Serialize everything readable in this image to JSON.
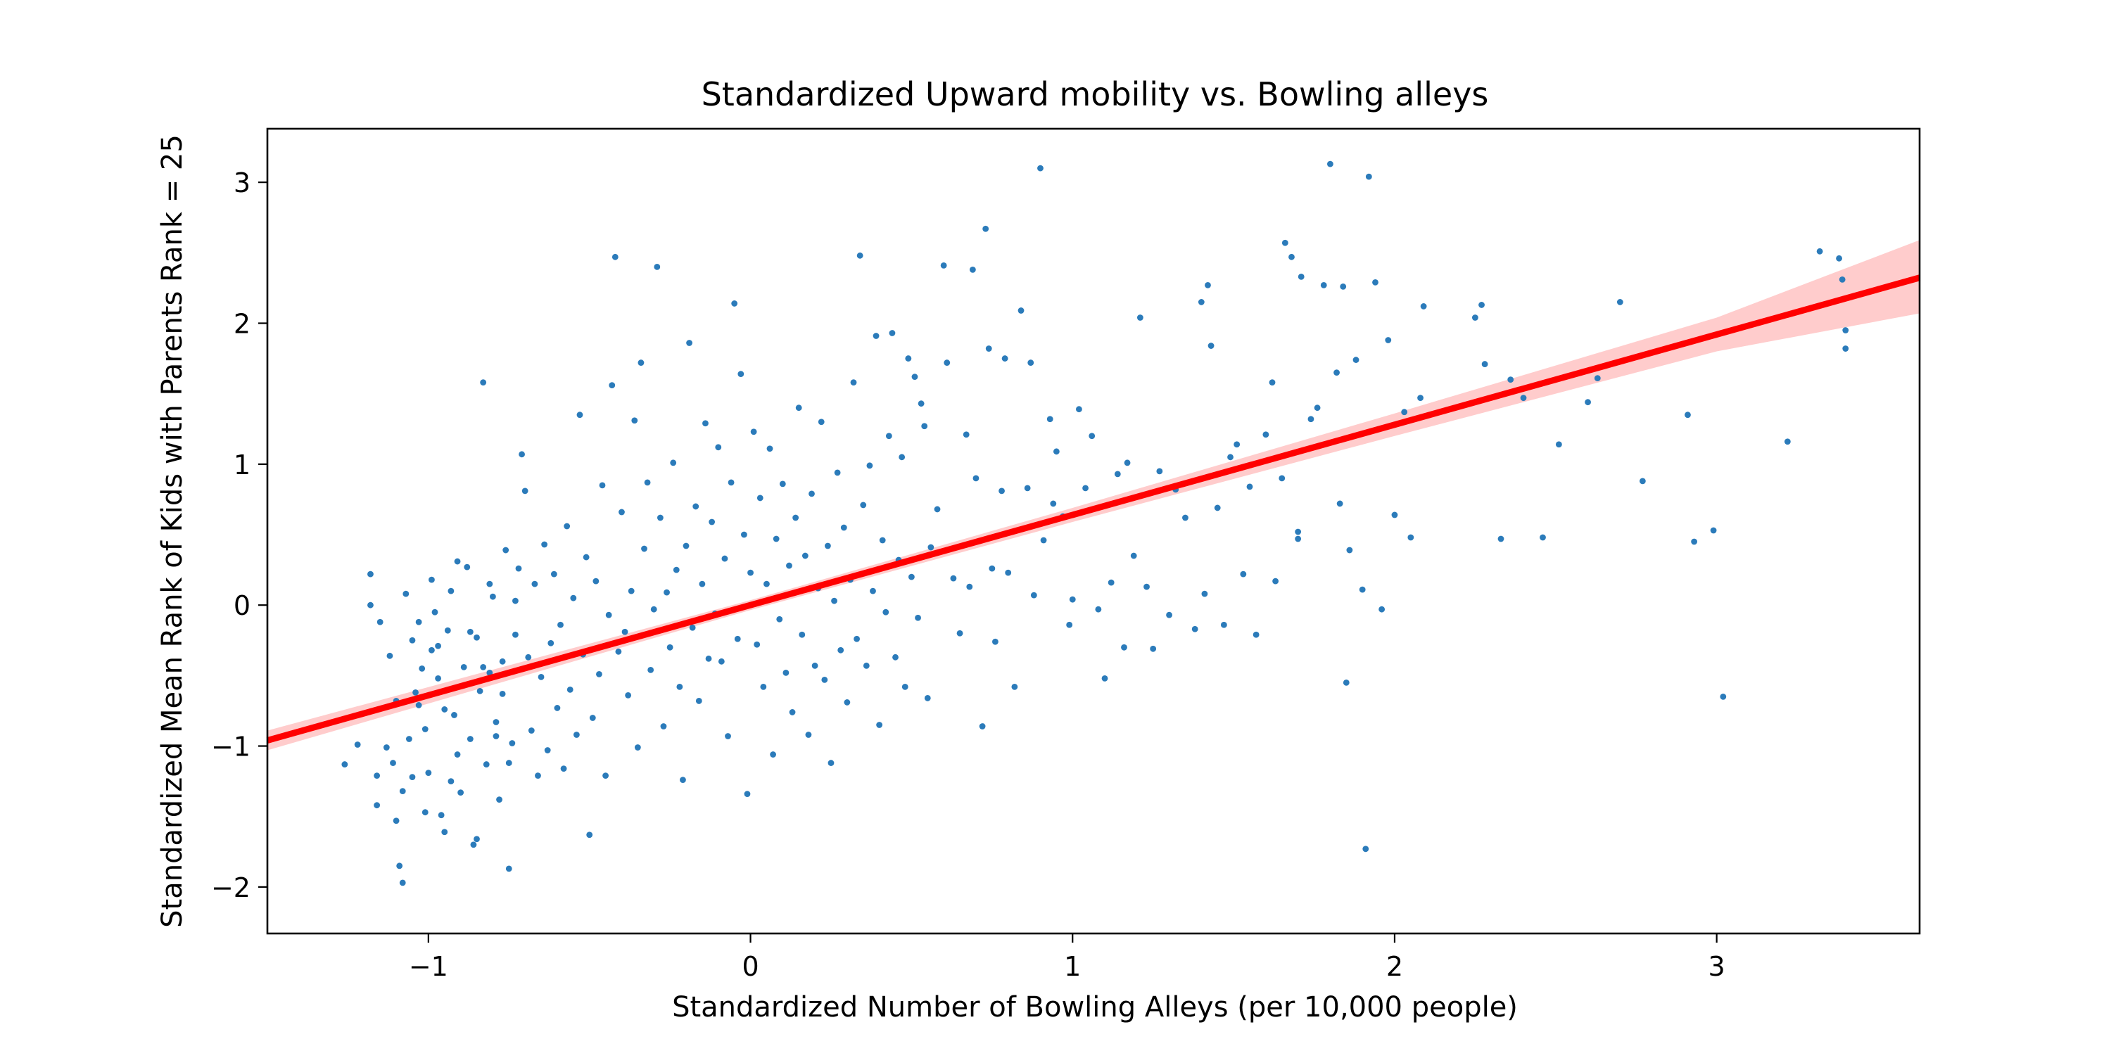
{
  "chart_data": {
    "type": "scatter",
    "title": "Standardized Upward mobility vs. Bowling alleys",
    "xlabel": "Standardized Number of Bowling Alleys (per 10,000 people)",
    "ylabel": "Standardized Mean Rank of Kids with Parents Rank = 25",
    "xlim": [
      -1.5,
      3.63
    ],
    "ylim": [
      -2.33,
      3.38
    ],
    "x_ticks": [
      -1,
      0,
      1,
      2,
      3
    ],
    "x_tick_labels": [
      "−1",
      "0",
      "1",
      "2",
      "3"
    ],
    "y_ticks": [
      -2,
      -1,
      0,
      1,
      2,
      3
    ],
    "y_tick_labels": [
      "−2",
      "−1",
      "0",
      "1",
      "2",
      "3"
    ],
    "grid": false,
    "colors": {
      "points": "#2b7bba",
      "fit_line": "#ff0000",
      "confidence_band": "#ffcccc"
    },
    "regression": {
      "intercept": 0.0,
      "slope": 0.64,
      "ci_band": [
        {
          "x": -1.5,
          "lower": -1.03,
          "upper": -0.89
        },
        {
          "x": 0.0,
          "lower": -0.035,
          "upper": 0.035
        },
        {
          "x": 1.0,
          "lower": 0.59,
          "upper": 0.69
        },
        {
          "x": 2.0,
          "lower": 1.2,
          "upper": 1.36
        },
        {
          "x": 3.0,
          "lower": 1.8,
          "upper": 2.04
        },
        {
          "x": 3.63,
          "lower": 2.07,
          "upper": 2.59
        }
      ]
    },
    "points": [
      [
        -1.26,
        -1.13
      ],
      [
        -1.22,
        -0.99
      ],
      [
        -1.18,
        0.22
      ],
      [
        -1.18,
        0.0
      ],
      [
        -1.15,
        -0.12
      ],
      [
        -1.12,
        -0.36
      ],
      [
        -1.1,
        -0.68
      ],
      [
        -1.09,
        -1.85
      ],
      [
        -1.08,
        -1.97
      ],
      [
        -1.16,
        -1.42
      ],
      [
        -1.16,
        -1.21
      ],
      [
        -1.13,
        -1.01
      ],
      [
        -1.11,
        -1.12
      ],
      [
        -1.1,
        -1.53
      ],
      [
        -1.08,
        -1.32
      ],
      [
        -1.06,
        -0.95
      ],
      [
        -1.05,
        -1.22
      ],
      [
        -1.04,
        -0.62
      ],
      [
        -1.03,
        -0.12
      ],
      [
        -1.02,
        -0.45
      ],
      [
        -1.01,
        -0.88
      ],
      [
        -1.0,
        -1.19
      ],
      [
        -0.99,
        -0.32
      ],
      [
        -0.98,
        -0.05
      ],
      [
        -0.97,
        -0.52
      ],
      [
        -0.96,
        -1.49
      ],
      [
        -0.95,
        -1.61
      ],
      [
        -0.94,
        -0.18
      ],
      [
        -0.93,
        0.1
      ],
      [
        -0.92,
        -0.78
      ],
      [
        -0.91,
        -1.06
      ],
      [
        -0.9,
        -1.33
      ],
      [
        -0.89,
        -0.44
      ],
      [
        -0.88,
        0.27
      ],
      [
        -0.87,
        -0.95
      ],
      [
        -0.86,
        -1.7
      ],
      [
        -0.85,
        -0.23
      ],
      [
        -0.84,
        -0.61
      ],
      [
        -0.83,
        1.58
      ],
      [
        -0.82,
        -1.13
      ],
      [
        -0.81,
        -0.48
      ],
      [
        -0.8,
        0.06
      ],
      [
        -0.79,
        -0.83
      ],
      [
        -0.78,
        -1.38
      ],
      [
        -0.77,
        -0.4
      ],
      [
        -0.76,
        0.39
      ],
      [
        -0.75,
        -1.87
      ],
      [
        -0.74,
        -0.98
      ],
      [
        -0.73,
        -0.21
      ],
      [
        -0.72,
        0.26
      ],
      [
        -1.07,
        0.08
      ],
      [
        -1.05,
        -0.25
      ],
      [
        -1.03,
        -0.71
      ],
      [
        -1.01,
        -1.47
      ],
      [
        -0.99,
        0.18
      ],
      [
        -0.97,
        -0.29
      ],
      [
        -0.95,
        -0.74
      ],
      [
        -0.93,
        -1.25
      ],
      [
        -0.91,
        0.31
      ],
      [
        -0.89,
        -0.57
      ],
      [
        -0.87,
        -0.19
      ],
      [
        -0.85,
        -1.66
      ],
      [
        -0.83,
        -0.44
      ],
      [
        -0.81,
        0.15
      ],
      [
        -0.79,
        -0.93
      ],
      [
        -0.77,
        -0.63
      ],
      [
        -0.75,
        -1.12
      ],
      [
        -0.73,
        0.03
      ],
      [
        -0.71,
        1.07
      ],
      [
        -0.7,
        0.81
      ],
      [
        -0.69,
        -0.37
      ],
      [
        -0.68,
        -0.89
      ],
      [
        -0.67,
        0.15
      ],
      [
        -0.66,
        -1.21
      ],
      [
        -0.65,
        -0.51
      ],
      [
        -0.64,
        0.43
      ],
      [
        -0.63,
        -1.03
      ],
      [
        -0.62,
        -0.27
      ],
      [
        -0.61,
        0.22
      ],
      [
        -0.6,
        -0.73
      ],
      [
        -0.59,
        -0.14
      ],
      [
        -0.58,
        -1.16
      ],
      [
        -0.57,
        0.56
      ],
      [
        -0.56,
        -0.6
      ],
      [
        -0.55,
        0.05
      ],
      [
        -0.54,
        -0.92
      ],
      [
        -0.53,
        1.35
      ],
      [
        -0.52,
        -0.35
      ],
      [
        -0.51,
        0.34
      ],
      [
        -0.5,
        -1.63
      ],
      [
        -0.49,
        -0.8
      ],
      [
        -0.48,
        0.17
      ],
      [
        -0.47,
        -0.49
      ],
      [
        -0.46,
        0.85
      ],
      [
        -0.45,
        -1.21
      ],
      [
        -0.44,
        -0.07
      ],
      [
        -0.43,
        1.56
      ],
      [
        -0.42,
        2.47
      ],
      [
        -0.41,
        -0.33
      ],
      [
        -0.4,
        0.66
      ],
      [
        -0.39,
        -0.19
      ],
      [
        -0.38,
        -0.64
      ],
      [
        -0.37,
        0.1
      ],
      [
        -0.36,
        1.31
      ],
      [
        -0.35,
        -1.01
      ],
      [
        -0.34,
        1.72
      ],
      [
        -0.33,
        0.4
      ],
      [
        -0.32,
        0.87
      ],
      [
        -0.31,
        -0.46
      ],
      [
        -0.3,
        -0.03
      ],
      [
        -0.29,
        2.4
      ],
      [
        -0.28,
        0.62
      ],
      [
        -0.27,
        -0.86
      ],
      [
        -0.26,
        0.09
      ],
      [
        -0.25,
        -0.3
      ],
      [
        -0.24,
        1.01
      ],
      [
        -0.23,
        0.25
      ],
      [
        -0.22,
        -0.58
      ],
      [
        -0.21,
        -1.24
      ],
      [
        -0.2,
        0.42
      ],
      [
        -0.19,
        1.86
      ],
      [
        -0.18,
        -0.16
      ],
      [
        -0.17,
        0.7
      ],
      [
        -0.16,
        -0.68
      ],
      [
        -0.15,
        0.15
      ],
      [
        -0.14,
        1.29
      ],
      [
        -0.13,
        -0.38
      ],
      [
        -0.12,
        0.59
      ],
      [
        -0.11,
        -0.06
      ],
      [
        -0.1,
        1.12
      ],
      [
        -0.09,
        -0.4
      ],
      [
        -0.08,
        0.33
      ],
      [
        -0.07,
        -0.93
      ],
      [
        -0.06,
        0.87
      ],
      [
        -0.05,
        2.14
      ],
      [
        -0.04,
        -0.24
      ],
      [
        -0.03,
        1.64
      ],
      [
        -0.02,
        0.5
      ],
      [
        -0.01,
        -1.34
      ],
      [
        0.0,
        0.23
      ],
      [
        0.01,
        1.23
      ],
      [
        0.02,
        -0.28
      ],
      [
        0.03,
        0.76
      ],
      [
        0.04,
        -0.58
      ],
      [
        0.05,
        0.15
      ],
      [
        0.06,
        1.11
      ],
      [
        0.07,
        -1.06
      ],
      [
        0.08,
        0.47
      ],
      [
        0.09,
        -0.1
      ],
      [
        0.1,
        0.86
      ],
      [
        0.11,
        -0.48
      ],
      [
        0.12,
        0.28
      ],
      [
        0.13,
        -0.76
      ],
      [
        0.14,
        0.62
      ],
      [
        0.15,
        1.4
      ],
      [
        0.16,
        -0.21
      ],
      [
        0.17,
        0.35
      ],
      [
        0.18,
        -0.92
      ],
      [
        0.19,
        0.79
      ],
      [
        0.2,
        -0.43
      ],
      [
        0.21,
        0.12
      ],
      [
        0.22,
        1.3
      ],
      [
        0.23,
        -0.53
      ],
      [
        0.24,
        0.42
      ],
      [
        0.25,
        -1.12
      ],
      [
        0.26,
        0.03
      ],
      [
        0.27,
        0.94
      ],
      [
        0.28,
        -0.32
      ],
      [
        0.29,
        0.55
      ],
      [
        0.3,
        -0.69
      ],
      [
        0.31,
        0.18
      ],
      [
        0.32,
        1.58
      ],
      [
        0.33,
        -0.24
      ],
      [
        0.34,
        2.48
      ],
      [
        0.35,
        0.71
      ],
      [
        0.36,
        -0.43
      ],
      [
        0.37,
        0.99
      ],
      [
        0.38,
        0.1
      ],
      [
        0.39,
        1.91
      ],
      [
        0.4,
        -0.85
      ],
      [
        0.41,
        0.46
      ],
      [
        0.42,
        -0.05
      ],
      [
        0.43,
        1.2
      ],
      [
        0.44,
        1.93
      ],
      [
        0.45,
        -0.37
      ],
      [
        0.46,
        0.32
      ],
      [
        0.47,
        1.05
      ],
      [
        0.48,
        -0.58
      ],
      [
        0.49,
        1.75
      ],
      [
        0.5,
        0.2
      ],
      [
        0.51,
        1.62
      ],
      [
        0.52,
        -0.09
      ],
      [
        0.53,
        1.43
      ],
      [
        0.54,
        1.27
      ],
      [
        0.55,
        -0.66
      ],
      [
        0.56,
        0.41
      ],
      [
        0.58,
        0.68
      ],
      [
        0.6,
        2.41
      ],
      [
        0.61,
        1.72
      ],
      [
        0.63,
        0.19
      ],
      [
        0.65,
        -0.2
      ],
      [
        0.67,
        1.21
      ],
      [
        0.68,
        0.13
      ],
      [
        0.69,
        2.38
      ],
      [
        0.7,
        0.9
      ],
      [
        0.72,
        -0.86
      ],
      [
        0.73,
        2.67
      ],
      [
        0.74,
        1.82
      ],
      [
        0.75,
        0.26
      ],
      [
        0.76,
        -0.26
      ],
      [
        0.78,
        0.81
      ],
      [
        0.79,
        1.75
      ],
      [
        0.8,
        0.23
      ],
      [
        0.82,
        -0.58
      ],
      [
        0.84,
        2.09
      ],
      [
        0.86,
        0.83
      ],
      [
        0.87,
        1.72
      ],
      [
        0.88,
        0.07
      ],
      [
        0.9,
        3.1
      ],
      [
        0.91,
        0.46
      ],
      [
        0.93,
        1.32
      ],
      [
        0.94,
        0.72
      ],
      [
        0.95,
        1.09
      ],
      [
        0.97,
        0.63
      ],
      [
        0.99,
        -0.14
      ],
      [
        1.0,
        0.04
      ],
      [
        1.02,
        1.39
      ],
      [
        1.04,
        0.83
      ],
      [
        1.06,
        1.2
      ],
      [
        1.08,
        -0.03
      ],
      [
        1.1,
        -0.52
      ],
      [
        1.12,
        0.16
      ],
      [
        1.14,
        0.93
      ],
      [
        1.16,
        -0.3
      ],
      [
        1.17,
        1.01
      ],
      [
        1.19,
        0.35
      ],
      [
        1.21,
        2.04
      ],
      [
        1.23,
        0.13
      ],
      [
        1.25,
        -0.31
      ],
      [
        1.27,
        0.95
      ],
      [
        1.3,
        -0.07
      ],
      [
        1.32,
        0.82
      ],
      [
        1.35,
        0.62
      ],
      [
        1.38,
        -0.17
      ],
      [
        1.4,
        2.15
      ],
      [
        1.41,
        0.08
      ],
      [
        1.42,
        2.27
      ],
      [
        1.43,
        1.84
      ],
      [
        1.45,
        0.69
      ],
      [
        1.47,
        -0.14
      ],
      [
        1.49,
        1.05
      ],
      [
        1.51,
        1.14
      ],
      [
        1.53,
        0.22
      ],
      [
        1.55,
        0.84
      ],
      [
        1.57,
        -0.21
      ],
      [
        1.6,
        1.21
      ],
      [
        1.62,
        1.58
      ],
      [
        1.63,
        0.17
      ],
      [
        1.65,
        0.9
      ],
      [
        1.66,
        2.57
      ],
      [
        1.68,
        2.47
      ],
      [
        1.7,
        0.52
      ],
      [
        1.7,
        0.47
      ],
      [
        1.71,
        2.33
      ],
      [
        1.74,
        1.32
      ],
      [
        1.76,
        1.4
      ],
      [
        1.78,
        2.27
      ],
      [
        1.8,
        3.13
      ],
      [
        1.82,
        1.65
      ],
      [
        1.83,
        0.72
      ],
      [
        1.84,
        2.26
      ],
      [
        1.85,
        -0.55
      ],
      [
        1.86,
        0.39
      ],
      [
        1.88,
        1.74
      ],
      [
        1.9,
        0.11
      ],
      [
        1.91,
        -1.73
      ],
      [
        1.92,
        3.04
      ],
      [
        1.94,
        2.29
      ],
      [
        1.96,
        -0.03
      ],
      [
        1.98,
        1.88
      ],
      [
        2.0,
        0.64
      ],
      [
        2.03,
        1.37
      ],
      [
        2.05,
        0.48
      ],
      [
        2.08,
        1.47
      ],
      [
        2.09,
        2.12
      ],
      [
        2.25,
        2.04
      ],
      [
        2.27,
        2.13
      ],
      [
        2.28,
        1.71
      ],
      [
        2.33,
        0.47
      ],
      [
        2.36,
        1.6
      ],
      [
        2.4,
        1.47
      ],
      [
        2.46,
        0.48
      ],
      [
        2.51,
        1.14
      ],
      [
        2.6,
        1.44
      ],
      [
        2.63,
        1.61
      ],
      [
        2.7,
        2.15
      ],
      [
        2.77,
        0.88
      ],
      [
        2.91,
        1.35
      ],
      [
        2.93,
        0.45
      ],
      [
        2.99,
        0.53
      ],
      [
        3.02,
        -0.65
      ],
      [
        3.22,
        1.16
      ],
      [
        3.32,
        2.51
      ],
      [
        3.38,
        2.46
      ],
      [
        3.39,
        2.31
      ],
      [
        3.4,
        1.95
      ],
      [
        3.4,
        1.82
      ]
    ]
  }
}
